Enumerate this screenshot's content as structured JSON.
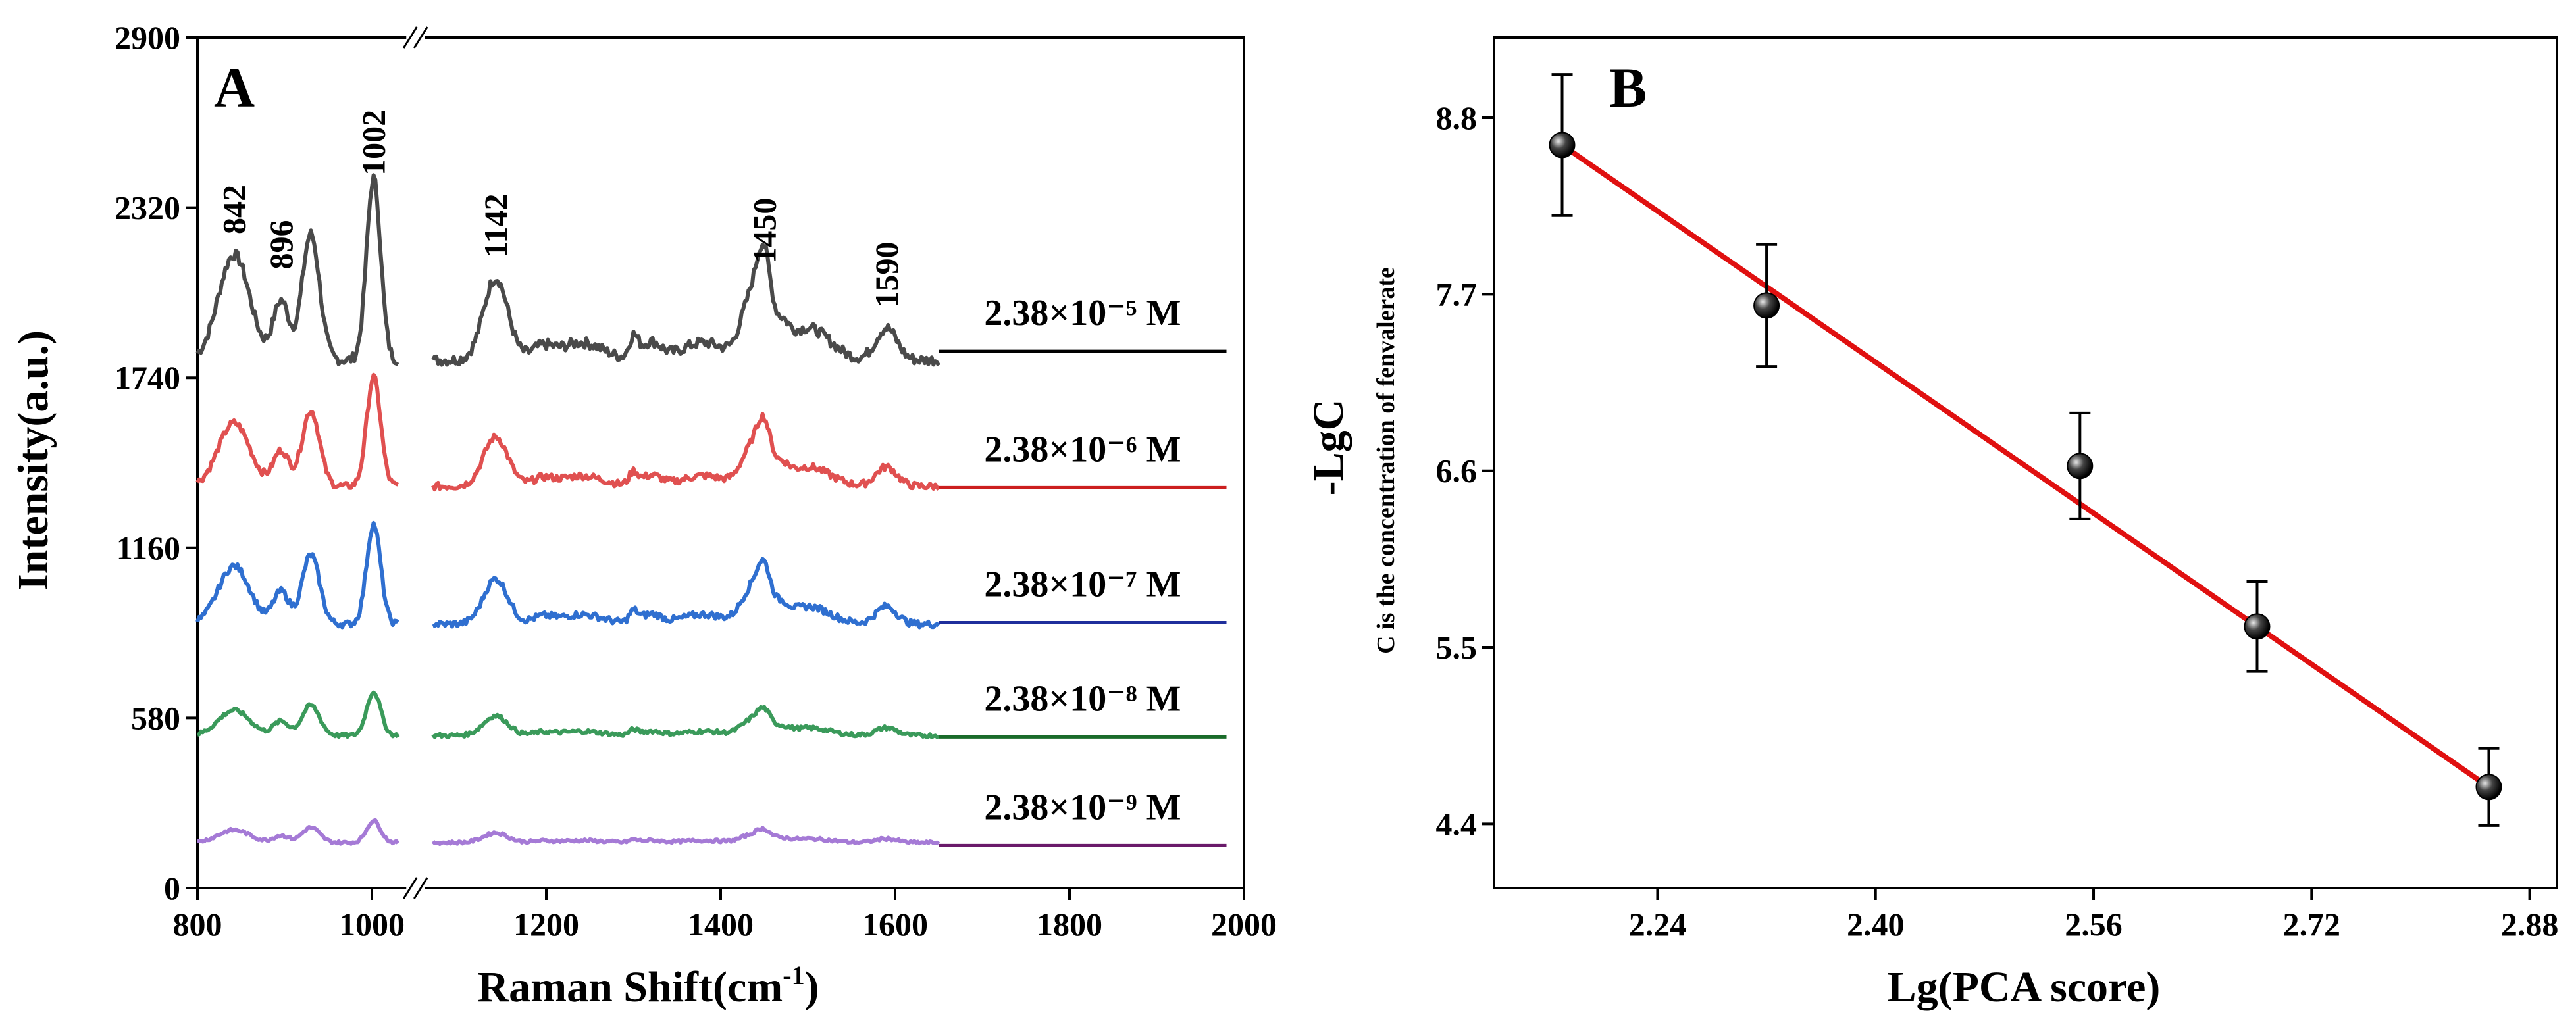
{
  "chart_data": [
    {
      "type": "line",
      "panel_label": "A",
      "xlabel": "Raman Shift(cm",
      "xlabel_sup": "-1",
      "xlabel_end": ")",
      "ylabel": "Intensity(a.u.)",
      "xlim": [
        800,
        2000
      ],
      "ylim": [
        0,
        2900
      ],
      "x_broken_between": [
        1030,
        1070
      ],
      "x_ticks": [
        "800",
        "1000",
        "1200",
        "1400",
        "1600",
        "1800",
        "2000"
      ],
      "y_ticks": [
        "0",
        "580",
        "1160",
        "1740",
        "2320",
        "2900"
      ],
      "peak_labels": [
        "842",
        "896",
        "1002",
        "1142",
        "1450",
        "1590"
      ],
      "peak_positions": [
        842,
        896,
        1002,
        1142,
        1450,
        1590
      ],
      "series": [
        {
          "name": "2.38×10⁻⁵ M",
          "color": "#4a4a4a",
          "baseline": 1800,
          "scale": 1.0
        },
        {
          "name": "2.38×10⁻⁶ M",
          "color": "#e05050",
          "baseline": 1370,
          "scale": 0.6
        },
        {
          "name": "2.38×10⁻⁷ M",
          "color": "#2f6fd0",
          "baseline": 900,
          "scale": 0.55
        },
        {
          "name": "2.38×10⁻⁸ M",
          "color": "#3a9a5a",
          "baseline": 520,
          "scale": 0.24
        },
        {
          "name": "2.38×10⁻⁹ M",
          "color": "#a57ad6",
          "baseline": 155,
          "scale": 0.12
        }
      ],
      "baseline_lines": [
        {
          "y": 1830,
          "color": "#000000"
        },
        {
          "y": 1365,
          "color": "#cc1f1f"
        },
        {
          "y": 905,
          "color": "#1f2f9c"
        },
        {
          "y": 515,
          "color": "#1a6b2a"
        },
        {
          "y": 145,
          "color": "#6a1a6a"
        }
      ]
    },
    {
      "type": "scatter",
      "panel_label": "B",
      "xlabel": "Lg(PCA score)",
      "ylabel": "-LgC",
      "ylabel_note": "C is the concentration of fenvalerate",
      "xlim": [
        2.12,
        2.9
      ],
      "ylim": [
        4.0,
        9.3
      ],
      "x_ticks": [
        "2.24",
        "2.40",
        "2.56",
        "2.72",
        "2.88"
      ],
      "y_ticks": [
        "4.4",
        "5.5",
        "6.6",
        "7.7",
        "8.8"
      ],
      "points": [
        {
          "x": 2.17,
          "y": 8.63,
          "err": 0.44
        },
        {
          "x": 2.32,
          "y": 7.63,
          "err": 0.38
        },
        {
          "x": 2.55,
          "y": 6.63,
          "err": 0.33
        },
        {
          "x": 2.68,
          "y": 5.63,
          "err": 0.28
        },
        {
          "x": 2.85,
          "y": 4.63,
          "err": 0.24
        }
      ],
      "fit_line": {
        "x": [
          2.17,
          2.85
        ],
        "y": [
          8.63,
          4.63
        ],
        "color": "#e01010"
      }
    }
  ]
}
